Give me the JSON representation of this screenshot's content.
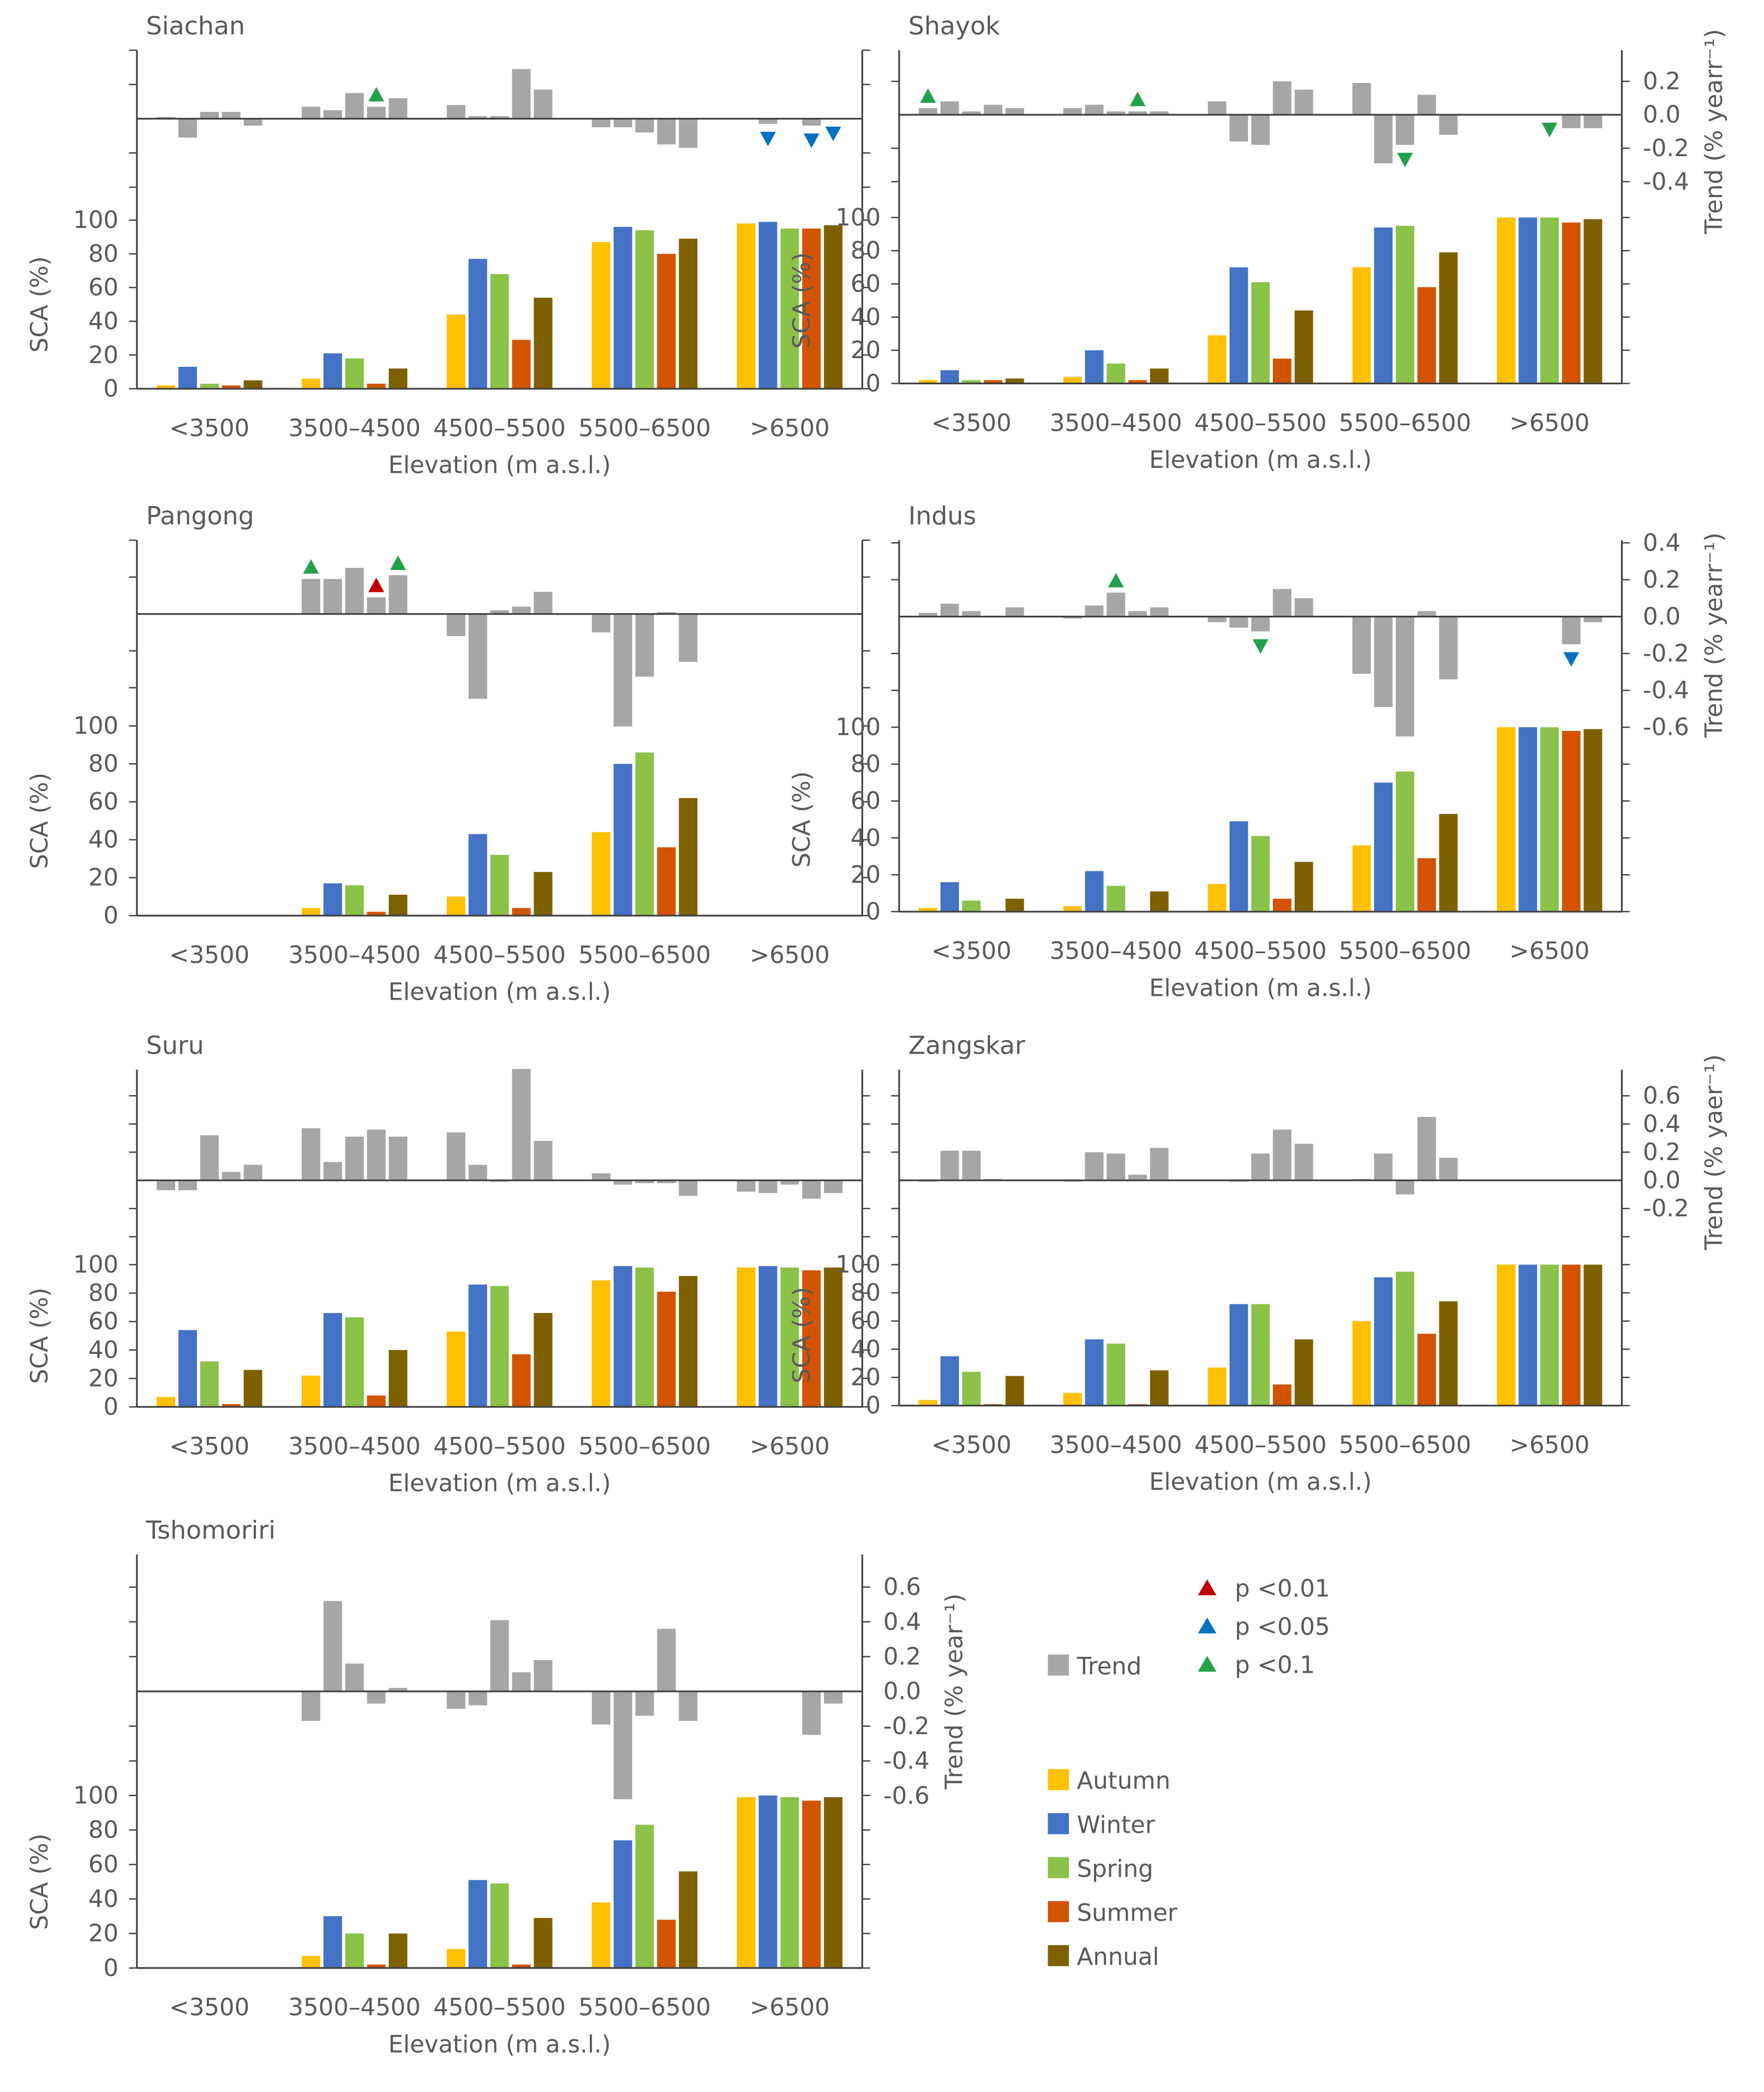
{
  "shared": {
    "categories": [
      "<3500",
      "3500–4500",
      "4500–5500",
      "5500–6500",
      ">6500"
    ],
    "series": [
      "Autumn",
      "Winter",
      "Spring",
      "Summer",
      "Annual"
    ],
    "series_colors": [
      "#FFC000",
      "#4472C4",
      "#8BC34A",
      "#D35400",
      "#7F6000"
    ],
    "trend_color": "#A6A6A6",
    "xlabel": "Elevation (m a.s.l.)",
    "ylabel": "SCA (%)",
    "sca_ticks": [
      0,
      20,
      40,
      60,
      80,
      100
    ],
    "significance": [
      {
        "label": "p <0.01",
        "color": "#C00000"
      },
      {
        "label": "p <0.05",
        "color": "#0070C0"
      },
      {
        "label": "p <0.1",
        "color": "#22A04B"
      }
    ]
  },
  "legend": {
    "trend_label": "Trend",
    "series": [
      "Autumn",
      "Winter",
      "Spring",
      "Summer",
      "Annual"
    ]
  },
  "chart_data": [
    {
      "type": "bar",
      "title": "Siachan",
      "ylim_sca": [
        0,
        100
      ],
      "trend": [
        [
          0.01,
          -0.11,
          0.04,
          0.04,
          -0.04
        ],
        [
          0.07,
          0.05,
          0.15,
          0.07,
          0.12
        ],
        [
          0.08,
          0.015,
          0.015,
          0.29,
          0.17
        ],
        [
          -0.05,
          -0.05,
          -0.08,
          -0.15,
          -0.17
        ],
        [
          0,
          -0.03,
          0,
          -0.04,
          0
        ]
      ],
      "sca": [
        [
          2,
          13,
          3,
          2,
          5
        ],
        [
          6,
          21,
          18,
          3,
          12
        ],
        [
          44,
          77,
          68,
          29,
          54
        ],
        [
          87,
          96,
          94,
          80,
          89
        ],
        [
          98,
          99,
          95,
          95,
          97
        ]
      ],
      "markers": [
        {
          "group": 1,
          "series": 3,
          "dir": "up",
          "p": 2
        },
        {
          "group": 4,
          "series": 1,
          "dir": "down",
          "p": 1
        },
        {
          "group": 4,
          "series": 3,
          "dir": "down",
          "p": 1
        },
        {
          "group": 4,
          "series": 4,
          "dir": "down",
          "p": 1
        }
      ],
      "right_axis": null
    },
    {
      "type": "bar",
      "title": "Shayok",
      "ylim_sca": [
        0,
        100
      ],
      "trend": [
        [
          0.04,
          0.08,
          0.02,
          0.06,
          0.04
        ],
        [
          0.04,
          0.06,
          0.02,
          0.02,
          0.02
        ],
        [
          0.08,
          -0.16,
          -0.18,
          0.2,
          0.15
        ],
        [
          0.19,
          -0.29,
          -0.18,
          0.12,
          -0.12
        ],
        [
          0,
          0,
          0,
          -0.08,
          -0.08
        ]
      ],
      "sca": [
        [
          2,
          8,
          2,
          2,
          3
        ],
        [
          4,
          20,
          12,
          2,
          9
        ],
        [
          29,
          70,
          61,
          15,
          44
        ],
        [
          70,
          94,
          95,
          58,
          79
        ],
        [
          100,
          100,
          100,
          97,
          99
        ]
      ],
      "markers": [
        {
          "group": 0,
          "series": 0,
          "dir": "up",
          "p": 2
        },
        {
          "group": 1,
          "series": 3,
          "dir": "up",
          "p": 2
        },
        {
          "group": 3,
          "series": 2,
          "dir": "down",
          "p": 2
        },
        {
          "group": 4,
          "series": 2,
          "dir": "down",
          "p": 2
        }
      ],
      "right_axis": {
        "label": "Trend (% yearr⁻¹)",
        "ticks": [
          "0.2",
          "0.0",
          "-0.2",
          "-0.4"
        ],
        "tick_values": [
          0.2,
          0,
          -0.2,
          -0.4
        ]
      }
    },
    {
      "type": "bar",
      "title": "Pangong",
      "ylim_sca": [
        0,
        100
      ],
      "trend": [
        null,
        [
          0.19,
          0.19,
          0.25,
          0.09,
          0.21
        ],
        [
          -0.12,
          -0.46,
          0.02,
          0.04,
          0.12
        ],
        [
          -0.1,
          -0.61,
          -0.34,
          0.01,
          -0.26
        ],
        null
      ],
      "sca": [
        null,
        [
          4,
          17,
          16,
          2,
          11
        ],
        [
          10,
          43,
          32,
          4,
          23
        ],
        [
          44,
          80,
          86,
          36,
          62
        ],
        null
      ],
      "markers": [
        {
          "group": 1,
          "series": 0,
          "dir": "up",
          "p": 2
        },
        {
          "group": 1,
          "series": 3,
          "dir": "up",
          "p": 0
        },
        {
          "group": 1,
          "series": 4,
          "dir": "up",
          "p": 2
        }
      ],
      "right_axis": null
    },
    {
      "type": "bar",
      "title": "Indus",
      "ylim_sca": [
        0,
        100
      ],
      "trend": [
        [
          0.02,
          0.07,
          0.03,
          0,
          0.05
        ],
        [
          -0.01,
          0.06,
          0.13,
          0.03,
          0.05
        ],
        [
          -0.03,
          -0.06,
          -0.08,
          0.15,
          0.1
        ],
        [
          -0.31,
          -0.49,
          -0.65,
          0.03,
          -0.34
        ],
        [
          0,
          0,
          0,
          -0.15,
          -0.03
        ]
      ],
      "sca": [
        [
          2,
          16,
          6,
          0,
          7
        ],
        [
          3,
          22,
          14,
          0,
          11
        ],
        [
          15,
          49,
          41,
          7,
          27
        ],
        [
          36,
          70,
          76,
          29,
          53
        ],
        [
          100,
          100,
          100,
          98,
          99
        ]
      ],
      "markers": [
        {
          "group": 1,
          "series": 2,
          "dir": "up",
          "p": 2
        },
        {
          "group": 2,
          "series": 2,
          "dir": "down",
          "p": 2
        },
        {
          "group": 4,
          "series": 3,
          "dir": "down",
          "p": 1
        }
      ],
      "right_axis": {
        "label": "Trend (% yearr⁻¹)",
        "ticks": [
          "0.4",
          "0.2",
          "0.0",
          "-0.2",
          "-0.4",
          "-0.6"
        ],
        "tick_values": [
          0.4,
          0.2,
          0,
          -0.2,
          -0.4,
          -0.6
        ]
      }
    },
    {
      "type": "bar",
      "title": "Suru",
      "ylim_sca": [
        0,
        100
      ],
      "trend": [
        [
          -0.07,
          -0.07,
          0.32,
          0.06,
          0.11
        ],
        [
          0.37,
          0.13,
          0.31,
          0.36,
          0.31
        ],
        [
          0.34,
          0.11,
          -0.01,
          0.79,
          0.28
        ],
        [
          0.05,
          -0.03,
          -0.02,
          -0.02,
          -0.11
        ],
        [
          -0.08,
          -0.09,
          -0.03,
          -0.13,
          -0.09
        ]
      ],
      "sca": [
        [
          7,
          54,
          32,
          2,
          26
        ],
        [
          22,
          66,
          63,
          8,
          40
        ],
        [
          53,
          86,
          85,
          37,
          66
        ],
        [
          89,
          99,
          98,
          81,
          92
        ],
        [
          98,
          99,
          98,
          96,
          98
        ]
      ],
      "markers": [],
      "right_axis": null
    },
    {
      "type": "bar",
      "title": "Zangskar",
      "ylim_sca": [
        0,
        100
      ],
      "trend": [
        [
          -0.01,
          0.21,
          0.21,
          0.01,
          0
        ],
        [
          -0.01,
          0.2,
          0.19,
          0.04,
          0.23
        ],
        [
          0,
          -0.01,
          0.19,
          0.36,
          0.26
        ],
        [
          0.01,
          0.19,
          -0.1,
          0.45,
          0.16
        ],
        [
          0,
          0,
          0,
          0,
          0
        ]
      ],
      "sca": [
        [
          4,
          35,
          24,
          1,
          21
        ],
        [
          9,
          47,
          44,
          1,
          25
        ],
        [
          27,
          72,
          72,
          15,
          47
        ],
        [
          60,
          91,
          95,
          51,
          74
        ],
        [
          100,
          100,
          100,
          100,
          100
        ]
      ],
      "markers": [],
      "right_axis": {
        "label": "Trend (% yaer⁻¹)",
        "ticks": [
          "0.6",
          "0.4",
          "0.2",
          "0.0",
          "-0.2"
        ],
        "tick_values": [
          0.6,
          0.4,
          0.2,
          0,
          -0.2
        ]
      }
    },
    {
      "type": "bar",
      "title": "Tshomoriri",
      "ylim_sca": [
        0,
        100
      ],
      "trend": [
        null,
        [
          -0.17,
          0.52,
          0.16,
          -0.07,
          0.02
        ],
        [
          -0.1,
          -0.08,
          0.41,
          0.11,
          0.18
        ],
        [
          -0.19,
          -0.62,
          -0.14,
          0.36,
          -0.17
        ],
        [
          0,
          0,
          0,
          -0.25,
          -0.07
        ]
      ],
      "sca": [
        null,
        [
          7,
          30,
          20,
          2,
          20
        ],
        [
          11,
          51,
          49,
          2,
          29
        ],
        [
          38,
          74,
          83,
          28,
          56
        ],
        [
          99,
          100,
          99,
          97,
          99
        ]
      ],
      "markers": [],
      "right_axis": {
        "label": "Trend (% year⁻¹)",
        "ticks": [
          "0.6",
          "0.4",
          "0.2",
          "0.0",
          "-0.2",
          "-0.4",
          "-0.6"
        ],
        "tick_values": [
          0.6,
          0.4,
          0.2,
          0,
          -0.2,
          -0.4,
          -0.6
        ]
      }
    }
  ]
}
